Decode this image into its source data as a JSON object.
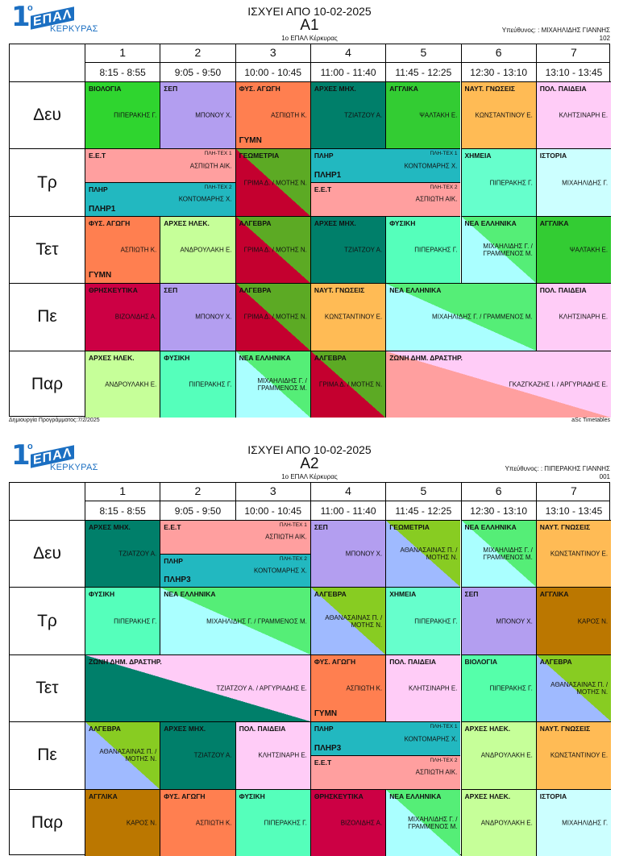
{
  "colors": {
    "bio": "#2fd52f",
    "sep": "#b39ef0",
    "fys": "#ff7f50",
    "arxmix": "#007f6a",
    "agg": "#33cc33",
    "nayt": "#ffbb55",
    "pol": "#ffccf7",
    "eet": "#ff9f9f",
    "plir": "#22b8c0",
    "geom_a": "#c4002f",
    "geom_b": "#5caa24",
    "xim": "#66ffcc",
    "ist": "#ccffff",
    "arxil": "#c6ff99",
    "fysiki": "#55ffbb",
    "nea_a": "#aaffff",
    "nea_b": "#55ee77",
    "thr": "#cc0044",
    "zoni_a": "#ff9f9f",
    "zoni_b": "#ffccf7",
    "karos": "#bb7700",
    "alg2_a": "#9fbaff",
    "alg2_b": "#88cc22",
    "bio2": "#55ffaa"
  },
  "timetables": [
    {
      "valid_from": "ΙΣΧΥΕΙ ΑΠΟ 10-02-2025",
      "class_name": "Α1",
      "school": "1ο ΕΠΑΛ Κέρκυρας",
      "responsible": "Υπεύθυνος: : ΜΙΧΑΗΛΙΔΗΣ ΓΙΑΝΝΗΣ",
      "code": "102",
      "periods": [
        {
          "num": "1",
          "time": "8:15 - 8:55"
        },
        {
          "num": "2",
          "time": "9:05 - 9:50"
        },
        {
          "num": "3",
          "time": "10:00 - 10:45"
        },
        {
          "num": "4",
          "time": "11:00 - 11:40"
        },
        {
          "num": "5",
          "time": "11:45 - 12:25"
        },
        {
          "num": "6",
          "time": "12:30 - 13:10"
        },
        {
          "num": "7",
          "time": "13:10 - 13:45"
        }
      ],
      "days": [
        "Δευ",
        "Τρ",
        "Τετ",
        "Πε",
        "Παρ"
      ],
      "footer_left": "Δημιουργία Προγράμματος:7/2/2025",
      "footer_right": "aSc Timetables"
    },
    {
      "valid_from": "ΙΣΧΥΕΙ ΑΠΟ 10-02-2025",
      "class_name": "Α2",
      "school": "1ο ΕΠΑΛ Κέρκυρας",
      "responsible": "Υπεύθυνος: : ΠΙΠΕΡΑΚΗΣ ΓΙΑΝΝΗΣ",
      "code": "001",
      "periods": [
        {
          "num": "1",
          "time": "8:15 - 8:55"
        },
        {
          "num": "2",
          "time": "9:05 - 9:50"
        },
        {
          "num": "3",
          "time": "10:00 - 10:45"
        },
        {
          "num": "4",
          "time": "11:00 - 11:40"
        },
        {
          "num": "5",
          "time": "11:45 - 12:25"
        },
        {
          "num": "6",
          "time": "12:30 - 13:10"
        },
        {
          "num": "7",
          "time": "13:10 - 13:45"
        }
      ],
      "days": [
        "Δευ",
        "Τρ",
        "Τετ",
        "Πε",
        "Παρ"
      ]
    }
  ],
  "logo": {
    "digit": "1",
    "sup": "ο",
    "word": "ΕΠΑΛ",
    "town": "ΚΕΡΚΥΡΑΣ"
  },
  "lessons_a1": [
    {
      "day": 0,
      "p": 0,
      "span": 1,
      "h": [
        0,
        1
      ],
      "sub": "ΒΙΟΛΟΓΙΑ",
      "tch": "ΠΙΠΕΡΑΚΗΣ Γ.",
      "c1": "bio"
    },
    {
      "day": 0,
      "p": 1,
      "span": 1,
      "h": [
        0,
        1
      ],
      "sub": "ΣΕΠ",
      "tch": "ΜΠΟΝΟΥ Χ.",
      "c1": "sep"
    },
    {
      "day": 0,
      "p": 2,
      "span": 1,
      "h": [
        0,
        1
      ],
      "sub": "ΦΥΣ. ΑΓΩΓΗ",
      "tch": "ΑΣΠΙΩΤΗ Κ.",
      "rm": "ΓΥΜΝ",
      "c1": "fys"
    },
    {
      "day": 0,
      "p": 3,
      "span": 1,
      "h": [
        0,
        1
      ],
      "sub": "ΑΡΧΕΣ ΜΗΧ.",
      "tch": "ΤΖΙΑΤΖΟΥ Α.",
      "c1": "arxmix"
    },
    {
      "day": 0,
      "p": 4,
      "span": 1,
      "h": [
        0,
        1
      ],
      "sub": "ΑΓΓΛΙΚΑ",
      "tch": "ΨΑΛΤΑΚΗ Ε.",
      "c1": "agg"
    },
    {
      "day": 0,
      "p": 5,
      "span": 1,
      "h": [
        0,
        1
      ],
      "sub": "ΝΑΥΤ. ΓΝΩΣΕΙΣ",
      "tch": "ΚΩΝΣΤΑΝΤΙΝΟΥ Ε.",
      "c1": "nayt"
    },
    {
      "day": 0,
      "p": 6,
      "span": 1,
      "h": [
        0,
        1
      ],
      "sub": "ΠΟΛ. ΠΑΙΔΕΙΑ",
      "tch": "ΚΛΗΤΣΙΝΑΡΗ Ε.",
      "c1": "pol"
    },
    {
      "day": 1,
      "p": 0,
      "span": 2,
      "h": [
        0,
        0.5
      ],
      "sub": "Ε.Ε.Τ",
      "grp": "ΠΛΗ-ΤΕΧ 1",
      "tch": "ΑΣΠΙΩΤΗ ΑΙΚ.",
      "c1": "eet"
    },
    {
      "day": 1,
      "p": 0,
      "span": 2,
      "h": [
        0.5,
        1
      ],
      "sub": "ΠΛΗΡ",
      "grp": "ΠΛΗ-ΤΕΧ 2",
      "tch": "ΚΟΝΤΟΜΑΡΗΣ Χ.",
      "tag": "ΠΛΗΡ1",
      "c1": "plir"
    },
    {
      "day": 1,
      "p": 2,
      "span": 1,
      "h": [
        0,
        1
      ],
      "sub": "ΓΕΩΜΕΤΡΙΑ",
      "tch": "ΓΡΙΜΑ Δ. / ΜΟΤΗΣ Ν.",
      "c1": "geom_a",
      "c2": "geom_b"
    },
    {
      "day": 1,
      "p": 3,
      "span": 2,
      "h": [
        0,
        0.5
      ],
      "sub": "ΠΛΗΡ",
      "grp": "ΠΛΗ-ΤΕΧ 1",
      "tch": "ΚΟΝΤΟΜΑΡΗΣ Χ.",
      "tag": "ΠΛΗΡ1",
      "c1": "plir"
    },
    {
      "day": 1,
      "p": 3,
      "span": 2,
      "h": [
        0.5,
        1
      ],
      "sub": "Ε.Ε.Τ",
      "grp": "ΠΛΗ-ΤΕΧ 2",
      "tch": "ΑΣΠΙΩΤΗ ΑΙΚ.",
      "c1": "eet"
    },
    {
      "day": 1,
      "p": 5,
      "span": 1,
      "h": [
        0,
        1
      ],
      "sub": "ΧΗΜΕΙΑ",
      "tch": "ΠΙΠΕΡΑΚΗΣ Γ.",
      "c1": "xim"
    },
    {
      "day": 1,
      "p": 6,
      "span": 1,
      "h": [
        0,
        1
      ],
      "sub": "ΙΣΤΟΡΙΑ",
      "tch": "ΜΙΧΑΗΛΙΔΗΣ Γ.",
      "c1": "ist"
    },
    {
      "day": 2,
      "p": 0,
      "span": 1,
      "h": [
        0,
        1
      ],
      "sub": "ΦΥΣ. ΑΓΩΓΗ",
      "tch": "ΑΣΠΙΩΤΗ Κ.",
      "rm": "ΓΥΜΝ",
      "c1": "fys"
    },
    {
      "day": 2,
      "p": 1,
      "span": 1,
      "h": [
        0,
        1
      ],
      "sub": "ΑΡΧΕΣ ΗΛΕΚ.",
      "tch": "ΑΝΔΡΟΥΛΑΚΗ Ε.",
      "c1": "arxil"
    },
    {
      "day": 2,
      "p": 2,
      "span": 1,
      "h": [
        0,
        1
      ],
      "sub": "ΑΛΓΕΒΡΑ",
      "tch": "ΓΡΙΜΑ Δ. / ΜΟΤΗΣ Ν.",
      "c1": "geom_a",
      "c2": "geom_b"
    },
    {
      "day": 2,
      "p": 3,
      "span": 1,
      "h": [
        0,
        1
      ],
      "sub": "ΑΡΧΕΣ ΜΗΧ.",
      "tch": "ΤΖΙΑΤΖΟΥ Α.",
      "c1": "arxmix"
    },
    {
      "day": 2,
      "p": 4,
      "span": 1,
      "h": [
        0,
        1
      ],
      "sub": "ΦΥΣΙΚΗ",
      "tch": "ΠΙΠΕΡΑΚΗΣ Γ.",
      "c1": "fysiki"
    },
    {
      "day": 2,
      "p": 5,
      "span": 1,
      "h": [
        0,
        1
      ],
      "sub": "ΝΕΑ ΕΛΛΗΝΙΚΑ",
      "tch": "ΜΙΧΑΗΛΙΔΗΣ Γ. / ΓΡΑΜΜΕΝΟΣ Μ.",
      "c1": "nea_a",
      "c2": "nea_b"
    },
    {
      "day": 2,
      "p": 6,
      "span": 1,
      "h": [
        0,
        1
      ],
      "sub": "ΑΓΓΛΙΚΑ",
      "tch": "ΨΑΛΤΑΚΗ Ε.",
      "c1": "agg"
    },
    {
      "day": 3,
      "p": 0,
      "span": 1,
      "h": [
        0,
        1
      ],
      "sub": "ΘΡΗΣΚΕΥΤΙΚΑ",
      "tch": "ΒΙΖΟΛΙΔΗΣ Α.",
      "c1": "thr"
    },
    {
      "day": 3,
      "p": 1,
      "span": 1,
      "h": [
        0,
        1
      ],
      "sub": "ΣΕΠ",
      "tch": "ΜΠΟΝΟΥ Χ.",
      "c1": "sep"
    },
    {
      "day": 3,
      "p": 2,
      "span": 1,
      "h": [
        0,
        1
      ],
      "sub": "ΑΛΓΕΒΡΑ",
      "tch": "ΓΡΙΜΑ Δ. / ΜΟΤΗΣ Ν.",
      "c1": "geom_a",
      "c2": "geom_b"
    },
    {
      "day": 3,
      "p": 3,
      "span": 1,
      "h": [
        0,
        1
      ],
      "sub": "ΝΑΥΤ. ΓΝΩΣΕΙΣ",
      "tch": "ΚΩΝΣΤΑΝΤΙΝΟΥ Ε.",
      "c1": "nayt"
    },
    {
      "day": 3,
      "p": 4,
      "span": 2,
      "h": [
        0,
        1
      ],
      "sub": "ΝΕΑ ΕΛΛΗΝΙΚΑ",
      "tch": "ΜΙΧΑΗΛΙΔΗΣ Γ. / ΓΡΑΜΜΕΝΟΣ Μ.",
      "c1": "nea_a",
      "c2": "nea_b"
    },
    {
      "day": 3,
      "p": 6,
      "span": 1,
      "h": [
        0,
        1
      ],
      "sub": "ΠΟΛ. ΠΑΙΔΕΙΑ",
      "tch": "ΚΛΗΤΣΙΝΑΡΗ Ε.",
      "c1": "pol"
    },
    {
      "day": 4,
      "p": 0,
      "span": 1,
      "h": [
        0,
        1
      ],
      "sub": "ΑΡΧΕΣ ΗΛΕΚ.",
      "tch": "ΑΝΔΡΟΥΛΑΚΗ Ε.",
      "c1": "arxil"
    },
    {
      "day": 4,
      "p": 1,
      "span": 1,
      "h": [
        0,
        1
      ],
      "sub": "ΦΥΣΙΚΗ",
      "tch": "ΠΙΠΕΡΑΚΗΣ Γ.",
      "c1": "fysiki"
    },
    {
      "day": 4,
      "p": 2,
      "span": 1,
      "h": [
        0,
        1
      ],
      "sub": "ΝΕΑ ΕΛΛΗΝΙΚΑ",
      "tch": "ΜΙΧΑΗΛΙΔΗΣ Γ. / ΓΡΑΜΜΕΝΟΣ Μ.",
      "c1": "nea_a",
      "c2": "nea_b"
    },
    {
      "day": 4,
      "p": 3,
      "span": 1,
      "h": [
        0,
        1
      ],
      "sub": "ΑΛΓΕΒΡΑ",
      "tch": "ΓΡΙΜΑ Δ. / ΜΟΤΗΣ Ν.",
      "c1": "geom_a",
      "c2": "geom_b"
    },
    {
      "day": 4,
      "p": 4,
      "span": 3,
      "h": [
        0,
        1
      ],
      "sub": "ΖΩΝΗ ΔΗΜ. ΔΡΑΣΤΗΡ.",
      "tch": "ΓΚΑΖΓΚΑΖΗΣ Ι. / ΑΡΓΥΡΙΑΔΗΣ Ε.",
      "c1": "zoni_a",
      "c2": "zoni_b"
    }
  ],
  "lessons_a2": [
    {
      "day": 0,
      "p": 0,
      "span": 1,
      "h": [
        0,
        1
      ],
      "sub": "ΑΡΧΕΣ ΜΗΧ.",
      "tch": "ΤΖΙΑΤΖΟΥ Α.",
      "c1": "arxmix"
    },
    {
      "day": 0,
      "p": 1,
      "span": 2,
      "h": [
        0,
        0.5
      ],
      "sub": "Ε.Ε.Τ",
      "grp": "ΠΛΗ-ΤΕΧ 1",
      "tch": "ΑΣΠΙΩΤΗ ΑΙΚ.",
      "c1": "eet"
    },
    {
      "day": 0,
      "p": 1,
      "span": 2,
      "h": [
        0.5,
        1
      ],
      "sub": "ΠΛΗΡ",
      "grp": "ΠΛΗ-ΤΕΧ 2",
      "tch": "ΚΟΝΤΟΜΑΡΗΣ Χ.",
      "tag": "ΠΛΗΡ3",
      "c1": "plir"
    },
    {
      "day": 0,
      "p": 3,
      "span": 1,
      "h": [
        0,
        1
      ],
      "sub": "ΣΕΠ",
      "tch": "ΜΠΟΝΟΥ Χ.",
      "c1": "sep"
    },
    {
      "day": 0,
      "p": 4,
      "span": 1,
      "h": [
        0,
        1
      ],
      "sub": "ΓΕΩΜΕΤΡΙΑ",
      "tch": "ΑΘΑΝΑΣΑΙΝΑΣ Π. / ΜΟΤΗΣ Ν.",
      "c1": "alg2_a",
      "c2": "alg2_b"
    },
    {
      "day": 0,
      "p": 5,
      "span": 1,
      "h": [
        0,
        1
      ],
      "sub": "ΝΕΑ ΕΛΛΗΝΙΚΑ",
      "tch": "ΜΙΧΑΗΛΙΔΗΣ Γ. / ΓΡΑΜΜΕΝΟΣ Μ.",
      "c1": "nea_a",
      "c2": "nea_b"
    },
    {
      "day": 0,
      "p": 6,
      "span": 1,
      "h": [
        0,
        1
      ],
      "sub": "ΝΑΥΤ. ΓΝΩΣΕΙΣ",
      "tch": "ΚΩΝΣΤΑΝΤΙΝΟΥ Ε.",
      "c1": "nayt"
    },
    {
      "day": 1,
      "p": 0,
      "span": 1,
      "h": [
        0,
        1
      ],
      "sub": "ΦΥΣΙΚΗ",
      "tch": "ΠΙΠΕΡΑΚΗΣ Γ.",
      "c1": "fysiki"
    },
    {
      "day": 1,
      "p": 1,
      "span": 2,
      "h": [
        0,
        1
      ],
      "sub": "ΝΕΑ ΕΛΛΗΝΙΚΑ",
      "tch": "ΜΙΧΑΗΛΙΔΗΣ Γ. / ΓΡΑΜΜΕΝΟΣ Μ.",
      "c1": "nea_a",
      "c2": "nea_b"
    },
    {
      "day": 1,
      "p": 3,
      "span": 1,
      "h": [
        0,
        1
      ],
      "sub": "ΑΛΓΕΒΡΑ",
      "tch": "ΑΘΑΝΑΣΑΙΝΑΣ Π. / ΜΟΤΗΣ Ν.",
      "c1": "alg2_a",
      "c2": "alg2_b"
    },
    {
      "day": 1,
      "p": 4,
      "span": 1,
      "h": [
        0,
        1
      ],
      "sub": "ΧΗΜΕΙΑ",
      "tch": "ΠΙΠΕΡΑΚΗΣ Γ.",
      "c1": "xim"
    },
    {
      "day": 1,
      "p": 5,
      "span": 1,
      "h": [
        0,
        1
      ],
      "sub": "ΣΕΠ",
      "tch": "ΜΠΟΝΟΥ Χ.",
      "c1": "sep"
    },
    {
      "day": 1,
      "p": 6,
      "span": 1,
      "h": [
        0,
        1
      ],
      "sub": "ΑΓΓΛΙΚΑ",
      "tch": "ΚΑΡΟΣ Ν.",
      "c1": "karos"
    },
    {
      "day": 2,
      "p": 0,
      "span": 3,
      "h": [
        0,
        1
      ],
      "sub": "ΖΩΝΗ ΔΗΜ. ΔΡΑΣΤΗΡ.",
      "tch": "ΤΖΙΑΤΖΟΥ Α. / ΑΡΓΥΡΙΑΔΗΣ Ε.",
      "c1": "arxmix",
      "c2": "zoni_b"
    },
    {
      "day": 2,
      "p": 3,
      "span": 1,
      "h": [
        0,
        1
      ],
      "sub": "ΦΥΣ. ΑΓΩΓΗ",
      "tch": "ΑΣΠΙΩΤΗ Κ.",
      "rm": "ΓΥΜΝ",
      "c1": "fys"
    },
    {
      "day": 2,
      "p": 4,
      "span": 1,
      "h": [
        0,
        1
      ],
      "sub": "ΠΟΛ. ΠΑΙΔΕΙΑ",
      "tch": "ΚΛΗΤΣΙΝΑΡΗ Ε.",
      "c1": "pol"
    },
    {
      "day": 2,
      "p": 5,
      "span": 1,
      "h": [
        0,
        1
      ],
      "sub": "ΒΙΟΛΟΓΙΑ",
      "tch": "ΠΙΠΕΡΑΚΗΣ Γ.",
      "c1": "bio2"
    },
    {
      "day": 2,
      "p": 6,
      "span": 1,
      "h": [
        0,
        1
      ],
      "sub": "ΑΛΓΕΒΡΑ",
      "tch": "ΑΘΑΝΑΣΑΙΝΑΣ Π. / ΜΟΤΗΣ Ν.",
      "c1": "alg2_a",
      "c2": "alg2_b"
    },
    {
      "day": 3,
      "p": 0,
      "span": 1,
      "h": [
        0,
        1
      ],
      "sub": "ΑΛΓΕΒΡΑ",
      "tch": "ΑΘΑΝΑΣΑΙΝΑΣ Π. / ΜΟΤΗΣ Ν.",
      "c1": "alg2_a",
      "c2": "alg2_b"
    },
    {
      "day": 3,
      "p": 1,
      "span": 1,
      "h": [
        0,
        1
      ],
      "sub": "ΑΡΧΕΣ ΜΗΧ.",
      "tch": "ΤΖΙΑΤΖΟΥ Α.",
      "c1": "arxmix"
    },
    {
      "day": 3,
      "p": 2,
      "span": 1,
      "h": [
        0,
        1
      ],
      "sub": "ΠΟΛ. ΠΑΙΔΕΙΑ",
      "tch": "ΚΛΗΤΣΙΝΑΡΗ Ε.",
      "c1": "pol"
    },
    {
      "day": 3,
      "p": 3,
      "span": 2,
      "h": [
        0,
        0.5
      ],
      "sub": "ΠΛΗΡ",
      "grp": "ΠΛΗ-ΤΕΧ 1",
      "tch": "ΚΟΝΤΟΜΑΡΗΣ Χ.",
      "tag": "ΠΛΗΡ3",
      "c1": "plir"
    },
    {
      "day": 3,
      "p": 3,
      "span": 2,
      "h": [
        0.5,
        1
      ],
      "sub": "Ε.Ε.Τ",
      "grp": "ΠΛΗ-ΤΕΧ 2",
      "tch": "ΑΣΠΙΩΤΗ ΑΙΚ.",
      "c1": "eet"
    },
    {
      "day": 3,
      "p": 5,
      "span": 1,
      "h": [
        0,
        1
      ],
      "sub": "ΑΡΧΕΣ ΗΛΕΚ.",
      "tch": "ΑΝΔΡΟΥΛΑΚΗ Ε.",
      "c1": "arxil"
    },
    {
      "day": 3,
      "p": 6,
      "span": 1,
      "h": [
        0,
        1
      ],
      "sub": "ΝΑΥΤ. ΓΝΩΣΕΙΣ",
      "tch": "ΚΩΝΣΤΑΝΤΙΝΟΥ Ε.",
      "c1": "nayt"
    },
    {
      "day": 4,
      "p": 0,
      "span": 1,
      "h": [
        0,
        1
      ],
      "sub": "ΑΓΓΛΙΚΑ",
      "tch": "ΚΑΡΟΣ Ν.",
      "c1": "karos"
    },
    {
      "day": 4,
      "p": 1,
      "span": 1,
      "h": [
        0,
        1
      ],
      "sub": "ΦΥΣ. ΑΓΩΓΗ",
      "tch": "ΑΣΠΙΩΤΗ Κ.",
      "c1": "fys"
    },
    {
      "day": 4,
      "p": 2,
      "span": 1,
      "h": [
        0,
        1
      ],
      "sub": "ΦΥΣΙΚΗ",
      "tch": "ΠΙΠΕΡΑΚΗΣ Γ.",
      "c1": "fysiki"
    },
    {
      "day": 4,
      "p": 3,
      "span": 1,
      "h": [
        0,
        1
      ],
      "sub": "ΘΡΗΣΚΕΥΤΙΚΑ",
      "tch": "ΒΙΖΟΛΙΔΗΣ Α.",
      "c1": "thr"
    },
    {
      "day": 4,
      "p": 4,
      "span": 1,
      "h": [
        0,
        1
      ],
      "sub": "ΝΕΑ ΕΛΛΗΝΙΚΑ",
      "tch": "ΜΙΧΑΗΛΙΔΗΣ Γ. / ΓΡΑΜΜΕΝΟΣ Μ.",
      "c1": "nea_a",
      "c2": "nea_b"
    },
    {
      "day": 4,
      "p": 5,
      "span": 1,
      "h": [
        0,
        1
      ],
      "sub": "ΑΡΧΕΣ ΗΛΕΚ.",
      "tch": "ΑΝΔΡΟΥΛΑΚΗ Ε.",
      "c1": "arxil"
    },
    {
      "day": 4,
      "p": 6,
      "span": 1,
      "h": [
        0,
        1
      ],
      "sub": "ΙΣΤΟΡΙΑ",
      "tch": "ΜΙΧΑΗΛΙΔΗΣ Γ.",
      "c1": "ist"
    }
  ]
}
